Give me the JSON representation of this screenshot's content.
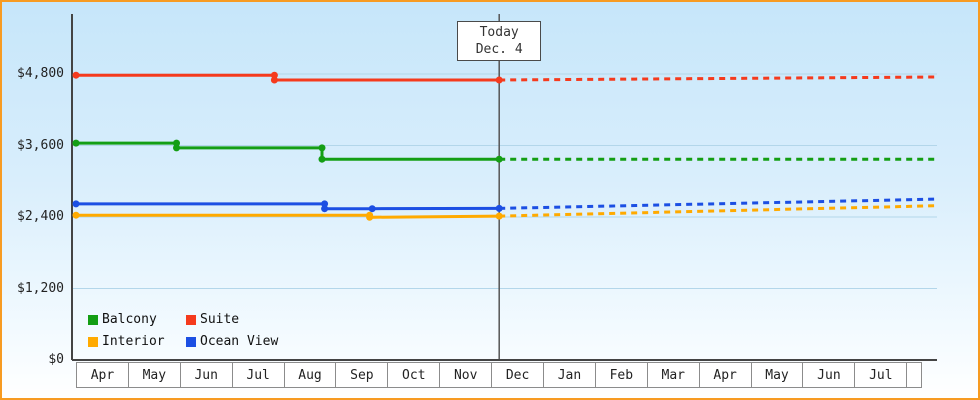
{
  "chart_data": {
    "type": "line",
    "x_unit": "month",
    "x_months": [
      "Apr",
      "May",
      "Jun",
      "Jul",
      "Aug",
      "Sep",
      "Oct",
      "Nov",
      "Dec",
      "Jan",
      "Feb",
      "Mar",
      "Apr",
      "May",
      "Jun",
      "Jul"
    ],
    "y_ticks": [
      0,
      1200,
      2400,
      3600,
      4800
    ],
    "y_tick_labels": [
      "$0",
      "$1,200",
      "$2,400",
      "$3,600",
      "$4,800"
    ],
    "ylim": [
      0,
      5800
    ],
    "x_extent": 16.28,
    "grid": true,
    "legend_position": "bottom-left-inside",
    "today": {
      "x": 8,
      "label_lines": [
        "Today",
        "Dec. 4"
      ]
    },
    "series": [
      {
        "name": "Suite",
        "color": "#f53a1d",
        "solid": [
          [
            0,
            4780
          ],
          [
            3.75,
            4780
          ],
          [
            3.75,
            4700
          ],
          [
            8,
            4700
          ]
        ],
        "dashed": [
          [
            8,
            4700
          ],
          [
            16.28,
            4750
          ]
        ],
        "markers": [
          [
            0,
            4780
          ],
          [
            3.75,
            4780
          ],
          [
            3.75,
            4700
          ],
          [
            8,
            4700
          ]
        ]
      },
      {
        "name": "Balcony",
        "color": "#149e14",
        "solid": [
          [
            0,
            3640
          ],
          [
            1.9,
            3640
          ],
          [
            1.9,
            3560
          ],
          [
            4.65,
            3560
          ],
          [
            4.65,
            3370
          ],
          [
            8,
            3370
          ]
        ],
        "dashed": [
          [
            8,
            3370
          ],
          [
            16.28,
            3370
          ]
        ],
        "markers": [
          [
            0,
            3640
          ],
          [
            1.9,
            3640
          ],
          [
            1.9,
            3560
          ],
          [
            4.65,
            3560
          ],
          [
            4.65,
            3370
          ],
          [
            8,
            3370
          ]
        ]
      },
      {
        "name": "Ocean View",
        "color": "#1c4fe3",
        "solid": [
          [
            0,
            2620
          ],
          [
            4.7,
            2620
          ],
          [
            4.7,
            2540
          ],
          [
            5.6,
            2540
          ],
          [
            8,
            2545
          ]
        ],
        "dashed": [
          [
            8,
            2545
          ],
          [
            16.28,
            2700
          ]
        ],
        "markers": [
          [
            0,
            2620
          ],
          [
            4.7,
            2620
          ],
          [
            4.7,
            2540
          ],
          [
            5.6,
            2540
          ],
          [
            8,
            2545
          ]
        ]
      },
      {
        "name": "Interior",
        "color": "#ffaa00",
        "solid": [
          [
            0,
            2430
          ],
          [
            5.55,
            2430
          ],
          [
            5.55,
            2395
          ],
          [
            8,
            2415
          ]
        ],
        "dashed": [
          [
            8,
            2415
          ],
          [
            16.28,
            2590
          ]
        ],
        "markers": [
          [
            0,
            2430
          ],
          [
            5.55,
            2430
          ],
          [
            5.55,
            2395
          ],
          [
            8,
            2415
          ]
        ]
      }
    ],
    "legend": [
      {
        "label": "Balcony",
        "color": "#149e14"
      },
      {
        "label": "Suite",
        "color": "#f53a1d"
      },
      {
        "label": "Interior",
        "color": "#ffaa00"
      },
      {
        "label": "Ocean View",
        "color": "#1c4fe3"
      }
    ],
    "colors": {
      "grid": "#b3d6ea",
      "axis": "#444444",
      "today_line": "#555555",
      "month_cell_border": "#8c8c8c",
      "frame_border": "#f79b22",
      "background_top": "#c6e6fa",
      "background_bottom": "#ffffff",
      "text": "#222222"
    }
  }
}
